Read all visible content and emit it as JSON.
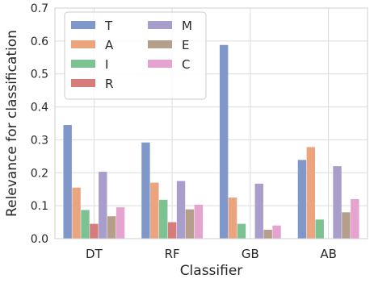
{
  "chart_data": {
    "type": "bar",
    "xlabel": "Classifier",
    "ylabel": "Relevance for classification",
    "categories": [
      "DT",
      "RF",
      "GB",
      "AB"
    ],
    "ylim": [
      0,
      0.7
    ],
    "yticks": [
      "0.0",
      "0.1",
      "0.2",
      "0.3",
      "0.4",
      "0.5",
      "0.6",
      "0.7"
    ],
    "grid": true,
    "legend_position": "top-left",
    "series": [
      {
        "name": "T",
        "color": "#7f98c9",
        "values": [
          0.345,
          0.292,
          0.588,
          0.239
        ]
      },
      {
        "name": "A",
        "color": "#eaa47e",
        "values": [
          0.155,
          0.17,
          0.125,
          0.278
        ]
      },
      {
        "name": "I",
        "color": "#7dc292",
        "values": [
          0.087,
          0.118,
          0.045,
          0.058
        ]
      },
      {
        "name": "R",
        "color": "#d67c7a",
        "values": [
          0.045,
          0.05,
          0.0,
          0.0
        ]
      },
      {
        "name": "M",
        "color": "#a99ecb",
        "values": [
          0.203,
          0.175,
          0.167,
          0.22
        ]
      },
      {
        "name": "E",
        "color": "#b59f8b",
        "values": [
          0.068,
          0.089,
          0.027,
          0.08
        ]
      },
      {
        "name": "C",
        "color": "#e4a4cf",
        "values": [
          0.095,
          0.103,
          0.04,
          0.12
        ]
      }
    ]
  }
}
